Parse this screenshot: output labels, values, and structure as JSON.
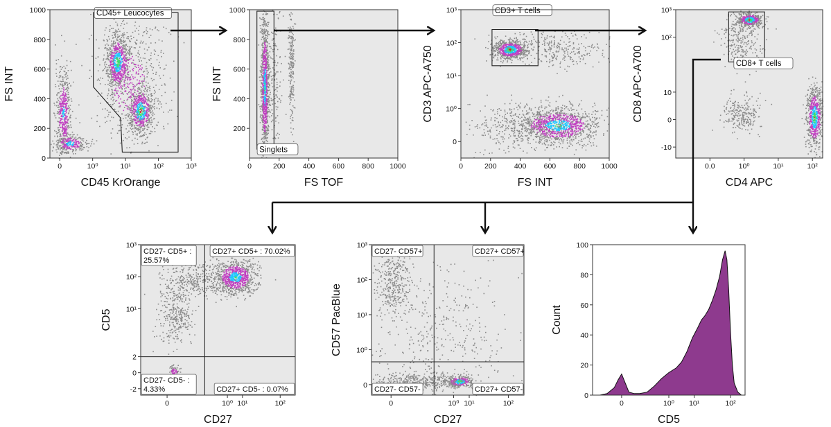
{
  "colors": {
    "background": "#e8e8e8",
    "events_gray": "#8a8a8a",
    "events_magenta": "#c040c0",
    "events_cyan": "#1ec8ff",
    "events_green": "#3fe06a",
    "events_red": "#e0182a",
    "gate_line": "#222222",
    "histogram_fill": "#8e3a8e"
  },
  "flow": [
    {
      "from": "p1",
      "to": "p2"
    },
    {
      "from": "p2",
      "to": "p3"
    },
    {
      "from": "p3",
      "to": "p4"
    },
    {
      "from": "p4",
      "to": "p5"
    },
    {
      "from": "p4",
      "to": "p6"
    },
    {
      "from": "p4",
      "to": "p7"
    }
  ],
  "chart_data": [
    {
      "id": "p1",
      "type": "scatter",
      "xlabel": "CD45 KrOrange",
      "ylabel": "FS INT",
      "x_scale": "logicle",
      "y_scale": "linear",
      "ylim": [
        0,
        1000
      ],
      "x_ticks": [
        {
          "v": 0,
          "t": "0"
        },
        {
          "v": 1,
          "t": "10⁰"
        },
        {
          "v": 2,
          "t": "10¹"
        },
        {
          "v": 3,
          "t": "10²"
        },
        {
          "v": 4,
          "t": "10³"
        }
      ],
      "y_ticks": [
        {
          "v": 0,
          "t": "0"
        },
        {
          "v": 200,
          "t": "200"
        },
        {
          "v": 400,
          "t": "400"
        },
        {
          "v": 600,
          "t": "600"
        },
        {
          "v": 800,
          "t": "800"
        },
        {
          "v": 1000,
          "t": "1000"
        }
      ],
      "xlim": [
        -0.3,
        4
      ],
      "populations": [
        {
          "name": "debris",
          "x": 0.1,
          "y": 300,
          "sx": 0.12,
          "sy": 160,
          "n": 520,
          "hot": 0.35
        },
        {
          "name": "debris-low",
          "x": 0.3,
          "y": 100,
          "sx": 0.25,
          "sy": 30,
          "n": 260,
          "hot": 0.5
        },
        {
          "name": "granulocytes",
          "x": 1.75,
          "y": 650,
          "sx": 0.18,
          "sy": 95,
          "n": 720,
          "hot": 0.75
        },
        {
          "name": "lymphocytes",
          "x": 2.45,
          "y": 320,
          "sx": 0.18,
          "sy": 75,
          "n": 620,
          "hot": 0.85
        },
        {
          "name": "monocytes-spread",
          "x": 2.1,
          "y": 500,
          "sx": 0.55,
          "sy": 230,
          "n": 600,
          "hot": 0.05
        }
      ],
      "gates": [
        {
          "label": "CD45+ Leucocytes",
          "polygon": [
            [
              1.02,
              980
            ],
            [
              3.6,
              980
            ],
            [
              3.6,
              40
            ],
            [
              1.9,
              40
            ],
            [
              1.85,
              270
            ],
            [
              1.02,
              480
            ]
          ],
          "label_at": [
            1.05,
            960
          ]
        }
      ]
    },
    {
      "id": "p2",
      "type": "scatter",
      "xlabel": "FS TOF",
      "ylabel": "FS INT",
      "x_scale": "linear",
      "y_scale": "linear",
      "xlim": [
        0,
        1000
      ],
      "ylim": [
        0,
        1000
      ],
      "x_ticks": [
        {
          "v": 0,
          "t": "0"
        },
        {
          "v": 200,
          "t": "200"
        },
        {
          "v": 400,
          "t": "400"
        },
        {
          "v": 600,
          "t": "600"
        },
        {
          "v": 800,
          "t": "800"
        },
        {
          "v": 1000,
          "t": "1000"
        }
      ],
      "y_ticks": [
        {
          "v": 200,
          "t": "200"
        },
        {
          "v": 400,
          "t": "400"
        },
        {
          "v": 600,
          "t": "600"
        },
        {
          "v": 800,
          "t": "800"
        },
        {
          "v": 1000,
          "t": "1000"
        }
      ],
      "populations": [
        {
          "name": "singlets",
          "x": 100,
          "y": 480,
          "sx": 13,
          "sy": 240,
          "n": 1100,
          "hot": 0.55
        },
        {
          "name": "doublets-a",
          "x": 165,
          "y": 600,
          "sx": 25,
          "sy": 260,
          "n": 180,
          "hot": 0
        },
        {
          "name": "doublets-b",
          "x": 280,
          "y": 620,
          "sx": 10,
          "sy": 230,
          "n": 220,
          "hot": 0
        }
      ],
      "gates": [
        {
          "label": "Singlets",
          "polygon": [
            [
              50,
              990
            ],
            [
              165,
              990
            ],
            [
              165,
              60
            ],
            [
              50,
              60
            ]
          ],
          "label_at": [
            52,
            40
          ]
        }
      ]
    },
    {
      "id": "p3",
      "type": "scatter",
      "xlabel": "FS INT",
      "ylabel": "CD3 APC-A750",
      "x_scale": "linear",
      "y_scale": "logicle",
      "xlim": [
        0,
        1000
      ],
      "ylim": [
        -0.5,
        4
      ],
      "x_ticks": [
        {
          "v": 0,
          "t": "0"
        },
        {
          "v": 200,
          "t": "200"
        },
        {
          "v": 400,
          "t": "400"
        },
        {
          "v": 600,
          "t": "600"
        },
        {
          "v": 800,
          "t": "800"
        },
        {
          "v": 1000,
          "t": "1000"
        }
      ],
      "y_ticks": [
        {
          "v": 0,
          "t": "0"
        },
        {
          "v": 1,
          "t": "10⁰"
        },
        {
          "v": 2,
          "t": "10¹"
        },
        {
          "v": 3,
          "t": "10²"
        },
        {
          "v": 4,
          "t": "10³"
        }
      ],
      "populations": [
        {
          "name": "cd3-pos",
          "x": 330,
          "y": 2.8,
          "sx": 55,
          "sy": 0.14,
          "n": 700,
          "hot": 0.85
        },
        {
          "name": "cd3-pos-tail",
          "x": 650,
          "y": 2.8,
          "sx": 200,
          "sy": 0.25,
          "n": 330,
          "hot": 0
        },
        {
          "name": "cd3-neg",
          "x": 650,
          "y": 0.5,
          "sx": 140,
          "sy": 0.28,
          "n": 1100,
          "hot": 0.6
        },
        {
          "name": "cd3-neg-spread",
          "x": 420,
          "y": 0.5,
          "sx": 180,
          "sy": 0.35,
          "n": 420,
          "hot": 0
        }
      ],
      "gates": [
        {
          "label": "CD3+ T cells",
          "polygon": [
            [
              210,
              3.4
            ],
            [
              520,
              3.4
            ],
            [
              520,
              2.3
            ],
            [
              210,
              2.3
            ]
          ],
          "label_at": [
            215,
            3.9
          ]
        }
      ]
    },
    {
      "id": "p4",
      "type": "scatter",
      "xlabel": "CD4 APC",
      "ylabel": "CD8 APC-A700",
      "x_scale": "logicle",
      "y_scale": "logicle",
      "xlim": [
        0,
        4.3
      ],
      "ylim": [
        -1.4,
        4
      ],
      "x_ticks": [
        {
          "v": 1,
          "t": "0.0"
        },
        {
          "v": 2,
          "t": "10⁰"
        },
        {
          "v": 3,
          "t": "10¹"
        },
        {
          "v": 4,
          "t": "10²"
        },
        {
          "v": 5,
          "t": "10³"
        }
      ],
      "y_ticks": [
        {
          "v": -1,
          "t": "-10"
        },
        {
          "v": 0,
          "t": "0"
        },
        {
          "v": 1,
          "t": "10"
        },
        {
          "v": 3,
          "t": "10²"
        },
        {
          "v": 4,
          "t": "10³"
        }
      ],
      "populations": [
        {
          "name": "cd8-pos",
          "x": 2.15,
          "y": 3.65,
          "sx": 0.18,
          "sy": 0.12,
          "n": 420,
          "hot": 0.85
        },
        {
          "name": "cd8-tail",
          "x": 1.9,
          "y": 2.9,
          "sx": 0.3,
          "sy": 0.55,
          "n": 280,
          "hot": 0
        },
        {
          "name": "cd4-pos",
          "x": 4.05,
          "y": 0.1,
          "sx": 0.12,
          "sy": 0.55,
          "n": 650,
          "hot": 0.75
        },
        {
          "name": "dn",
          "x": 1.9,
          "y": 0.2,
          "sx": 0.28,
          "sy": 0.35,
          "n": 240,
          "hot": 0
        }
      ],
      "gates": [
        {
          "label": "CD8+ T cells",
          "polygon": [
            [
              1.55,
              3.92
            ],
            [
              2.6,
              3.92
            ],
            [
              2.6,
              2.1
            ],
            [
              1.55,
              2.1
            ]
          ],
          "label_at": [
            1.7,
            1.95
          ]
        }
      ]
    },
    {
      "id": "p5",
      "type": "scatter",
      "xlabel": "CD27",
      "ylabel": "CD5",
      "x_scale": "logicle",
      "y_scale": "logicle",
      "xlim": [
        -0.7,
        3.4
      ],
      "ylim": [
        -0.7,
        4
      ],
      "x_ticks": [
        {
          "v": 0,
          "t": "0"
        },
        {
          "v": 1.6,
          "t": "10⁰"
        },
        {
          "v": 2,
          "t": "10¹"
        },
        {
          "v": 3,
          "t": "10²"
        },
        {
          "v": 4,
          "t": "10³"
        }
      ],
      "y_ticks": [
        {
          "v": -0.5,
          "t": "-2"
        },
        {
          "v": 0,
          "t": "0"
        },
        {
          "v": 0.5,
          "t": "2"
        },
        {
          "v": 2,
          "t": "10¹"
        },
        {
          "v": 3,
          "t": "10²"
        },
        {
          "v": 4,
          "t": "10³"
        }
      ],
      "populations": [
        {
          "name": "cd27pos-cd5pos",
          "x": 1.8,
          "y": 3.0,
          "sx": 0.28,
          "sy": 0.28,
          "n": 900,
          "hot": 0.55
        },
        {
          "name": "cd27neg-cd5pos",
          "x": 0.2,
          "y": 1.8,
          "sx": 0.22,
          "sy": 0.5,
          "n": 320,
          "hot": 0
        },
        {
          "name": "bridge",
          "x": 0.7,
          "y": 2.9,
          "sx": 0.4,
          "sy": 0.25,
          "n": 320,
          "hot": 0
        },
        {
          "name": "cd27neg-cd5neg",
          "x": 0.18,
          "y": 0.05,
          "sx": 0.07,
          "sy": 0.08,
          "n": 70,
          "hot": 0.3
        }
      ],
      "quadrant": {
        "x": 1,
        "y": 0.5
      },
      "quadrant_labels": [
        {
          "pos": "tl",
          "lines": [
            "CD27- CD5+ :",
            "25.57%"
          ]
        },
        {
          "pos": "tr",
          "lines": [
            "CD27+ CD5+ : 70.02%"
          ]
        },
        {
          "pos": "bl",
          "lines": [
            "CD27- CD5- :",
            "4.33%"
          ]
        },
        {
          "pos": "br",
          "lines": [
            "CD27+ CD5- : 0.07%"
          ]
        }
      ]
    },
    {
      "id": "p6",
      "type": "scatter",
      "xlabel": "CD27",
      "ylabel": "CD57 PacBlue",
      "x_scale": "logicle",
      "y_scale": "logicle",
      "xlim": [
        -0.5,
        3.4
      ],
      "ylim": [
        -0.3,
        4
      ],
      "x_ticks": [
        {
          "v": 0,
          "t": "0"
        },
        {
          "v": 1.6,
          "t": "10⁰"
        },
        {
          "v": 2,
          "t": "10¹"
        },
        {
          "v": 3,
          "t": "10²"
        },
        {
          "v": 4,
          "t": "10³"
        }
      ],
      "y_ticks": [
        {
          "v": 0,
          "t": "0"
        },
        {
          "v": 1,
          "t": "10⁰"
        },
        {
          "v": 2,
          "t": "10¹"
        },
        {
          "v": 3,
          "t": "10²"
        },
        {
          "v": 4,
          "t": "10³"
        }
      ],
      "populations": [
        {
          "name": "cd27neg-cd57pos",
          "x": 0.05,
          "y": 2.9,
          "sx": 0.22,
          "sy": 0.45,
          "n": 340,
          "hot": 0
        },
        {
          "name": "cd27pos-cd57neg",
          "x": 1.75,
          "y": 0.1,
          "sx": 0.18,
          "sy": 0.08,
          "n": 300,
          "hot": 0.8
        },
        {
          "name": "neg-band",
          "x": 0.8,
          "y": 0.1,
          "sx": 0.6,
          "sy": 0.12,
          "n": 420,
          "hot": 0
        },
        {
          "name": "sparse",
          "x": 1.2,
          "y": 1.5,
          "sx": 0.9,
          "sy": 1.0,
          "n": 380,
          "hot": 0
        }
      ],
      "quadrant": {
        "x": 1.1,
        "y": 0.65
      },
      "quadrant_labels": [
        {
          "pos": "tl",
          "lines": [
            "CD27- CD57+"
          ]
        },
        {
          "pos": "tr",
          "lines": [
            "CD27+ CD57+"
          ]
        },
        {
          "pos": "bl",
          "lines": [
            "CD27- CD57-"
          ]
        },
        {
          "pos": "br",
          "lines": [
            "CD27+ CD57-"
          ]
        }
      ]
    },
    {
      "id": "p7",
      "type": "area",
      "xlabel": "CD5",
      "ylabel": "Count",
      "x_scale": "logicle",
      "y_scale": "linear",
      "xlim": [
        -0.8,
        3.4
      ],
      "ylim": [
        0,
        100
      ],
      "x_ticks": [
        {
          "v": 0,
          "t": "0"
        },
        {
          "v": 1.3,
          "t": "10⁰"
        },
        {
          "v": 2,
          "t": "10¹"
        },
        {
          "v": 3,
          "t": "10²"
        },
        {
          "v": 4,
          "t": "10³"
        }
      ],
      "y_ticks": [
        {
          "v": 0,
          "t": "0"
        },
        {
          "v": 20,
          "t": "20"
        },
        {
          "v": 40,
          "t": "40"
        },
        {
          "v": 60,
          "t": "60"
        },
        {
          "v": 80,
          "t": "80"
        },
        {
          "v": 100,
          "t": "100"
        }
      ],
      "histogram": {
        "x": [
          -0.8,
          -0.6,
          -0.4,
          -0.2,
          -0.1,
          0.0,
          0.1,
          0.2,
          0.35,
          0.5,
          0.7,
          0.9,
          1.1,
          1.3,
          1.5,
          1.65,
          1.8,
          1.95,
          2.1,
          2.2,
          2.3,
          2.4,
          2.5,
          2.6,
          2.7,
          2.78,
          2.85,
          2.9,
          2.95,
          3.0,
          3.05,
          3.1,
          3.2,
          3.3,
          3.4
        ],
        "y": [
          0,
          0,
          1,
          5,
          10,
          14,
          8,
          2,
          1,
          1,
          2,
          6,
          11,
          15,
          18,
          22,
          29,
          38,
          45,
          50,
          53,
          57,
          63,
          70,
          79,
          90,
          96,
          90,
          70,
          42,
          20,
          8,
          2,
          0,
          0
        ]
      }
    }
  ]
}
